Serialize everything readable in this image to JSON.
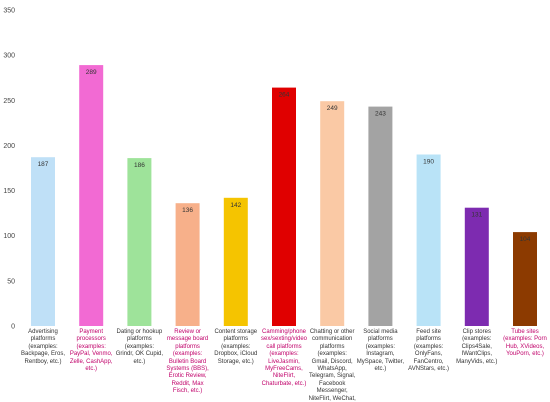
{
  "chart_data": {
    "type": "bar",
    "title": "",
    "xlabel": "",
    "ylabel": "",
    "ylim": [
      0,
      350
    ],
    "yticks": [
      0,
      50,
      100,
      150,
      200,
      250,
      300,
      350
    ],
    "grid": false,
    "legend": "none",
    "categories": [
      "Advertising platforms (examples: Backpage, Eros, Rentboy, etc.)",
      "Payment processors (examples: PayPal, Venmo, Zelle, CashApp, etc.)",
      "Dating or hookup platforms (examples: Grindr, OK Cupid, etc.)",
      "Review or message board platforms (examples: Bulletin Board Systems (BBS), Erotic Review, Reddit, Max Fisch, etc.)",
      "Content storage platforms (examples: Dropbox, iCloud Storage, etc.)",
      "Camming/phone sex/sexting/video call platforms (examples: LiveJasmin, MyFreeCams, NiteFlirt, Chaturbate, etc.)",
      "Chatting or other communication platforms (examples: Gmail, Discord, WhatsApp, Telegram, Signal, Facebook Messenger, NiteFlirt, WeChat, Zoom, etc.)",
      "Social media platforms (examples: Instagram, MySpace, Twitter, etc.)",
      "Feed site platforms (examples: OnlyFans, FanCentro, AVNStars, etc.)",
      "Clip stores (examples: Clips4Sale, IWantClips, ManyVids, etc.)",
      "Tube sites (examples: Porn Hub, XVideos, YouPorn, etc.)"
    ],
    "values": [
      187,
      289,
      186,
      136,
      142,
      264,
      249,
      243,
      190,
      131,
      104
    ],
    "value_labels": [
      "187",
      "289",
      "186",
      "136",
      "142",
      "264",
      "249",
      "243",
      "190",
      "131",
      "104"
    ],
    "colors": [
      "#bfe0f7",
      "#f26ad3",
      "#9ee39a",
      "#f7b08a",
      "#f5c400",
      "#e00000",
      "#fac9a5",
      "#a3a3a3",
      "#b9e3f7",
      "#7d2bb0",
      "#8c3a00"
    ],
    "highlighted_categories": [
      1,
      3,
      5,
      10
    ]
  }
}
